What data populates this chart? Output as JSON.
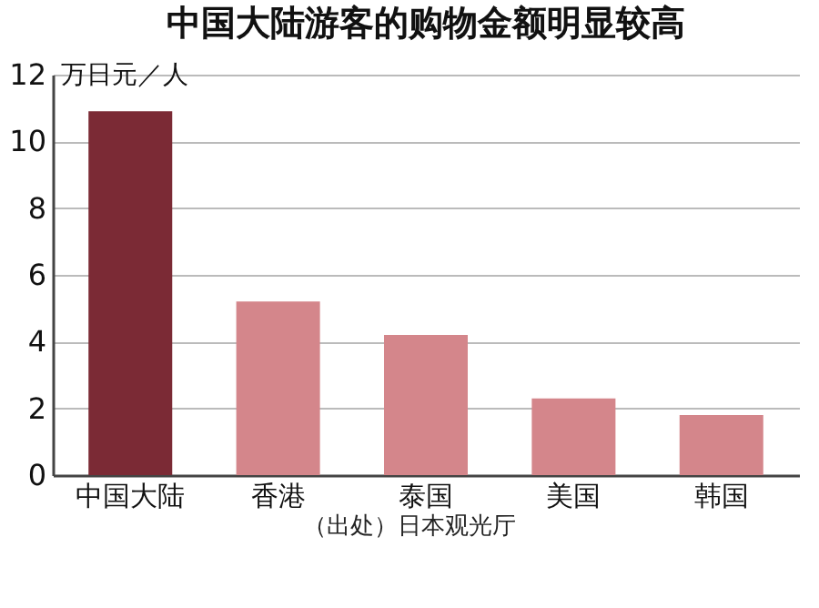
{
  "chart_data": {
    "type": "bar",
    "title": "中国大陆游客的购物金额明显较高",
    "ylabel": "万日元／人",
    "categories": [
      "中国大陆",
      "香港",
      "泰国",
      "美国",
      "韩国"
    ],
    "values": [
      10.9,
      5.2,
      4.2,
      2.3,
      1.8
    ],
    "colors": [
      "#7b2a35",
      "#d4868b",
      "#d4868b",
      "#d4868b",
      "#d4868b"
    ],
    "ylim": [
      0,
      12
    ],
    "yticks": [
      0,
      2,
      4,
      6,
      8,
      10,
      12
    ],
    "grid": "y",
    "annotations": [
      "（出处）日本观光厅"
    ]
  }
}
